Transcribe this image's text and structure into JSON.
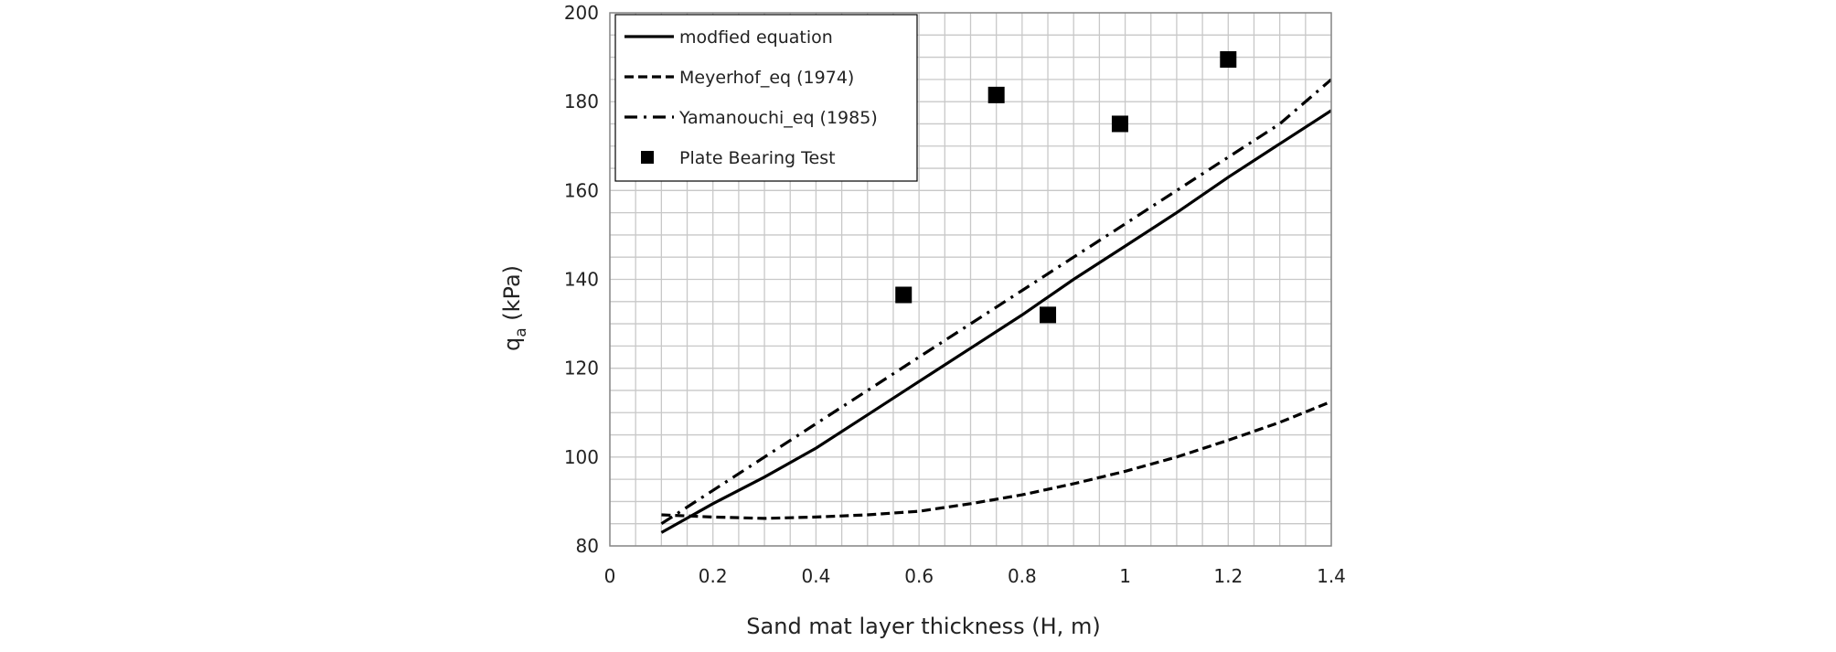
{
  "chart_data": {
    "type": "line",
    "title": "",
    "xlabel": "Sand mat layer thickness (H, m)",
    "ylabel": {
      "main": "q",
      "subscript": "a",
      "unit": " (kPa)"
    },
    "xlim": [
      0,
      1.4
    ],
    "ylim": [
      80,
      200
    ],
    "x_major_ticks": [
      0,
      0.2,
      0.4,
      0.6,
      0.8,
      1,
      1.2,
      1.4
    ],
    "y_major_ticks": [
      80,
      100,
      120,
      140,
      160,
      180,
      200
    ],
    "x_tick_labels": [
      "0",
      "0.2",
      "0.4",
      "0.6",
      "0.8",
      "1",
      "1.2",
      "1.4"
    ],
    "y_tick_labels": [
      "80",
      "100",
      "120",
      "140",
      "160",
      "180",
      "200"
    ],
    "x_minor_step": 0.05,
    "y_minor_step": 5,
    "grid": true,
    "legend_position": "top-left",
    "colors": {
      "ink": "#000000",
      "grid": "#c8c8c8",
      "frame": "#888888",
      "background": "#ffffff"
    },
    "series": [
      {
        "name": "modfied equation",
        "style": "solid",
        "points": [
          [
            0.1,
            83
          ],
          [
            0.2,
            89.5
          ],
          [
            0.3,
            95.5
          ],
          [
            0.4,
            102
          ],
          [
            0.5,
            109.5
          ],
          [
            0.6,
            117
          ],
          [
            0.7,
            124.5
          ],
          [
            0.8,
            132
          ],
          [
            0.9,
            140
          ],
          [
            1.0,
            147.5
          ],
          [
            1.1,
            155
          ],
          [
            1.2,
            163
          ],
          [
            1.3,
            170.5
          ],
          [
            1.4,
            178
          ]
        ]
      },
      {
        "name": "Meyerhof_eq (1974)",
        "style": "dashed",
        "points": [
          [
            0.1,
            87
          ],
          [
            0.2,
            86.5
          ],
          [
            0.3,
            86.2
          ],
          [
            0.4,
            86.5
          ],
          [
            0.5,
            87
          ],
          [
            0.6,
            87.8
          ],
          [
            0.7,
            89.5
          ],
          [
            0.8,
            91.5
          ],
          [
            0.9,
            94
          ],
          [
            1.0,
            96.8
          ],
          [
            1.1,
            100
          ],
          [
            1.2,
            103.8
          ],
          [
            1.3,
            107.8
          ],
          [
            1.4,
            112.5
          ]
        ]
      },
      {
        "name": "Yamanouchi_eq (1985)",
        "style": "dashdot",
        "points": [
          [
            0.1,
            85
          ],
          [
            0.2,
            92.5
          ],
          [
            0.3,
            100
          ],
          [
            0.4,
            107.5
          ],
          [
            0.5,
            115
          ],
          [
            0.6,
            122.5
          ],
          [
            0.7,
            130
          ],
          [
            0.8,
            137.5
          ],
          [
            0.9,
            145
          ],
          [
            1.0,
            152.5
          ],
          [
            1.1,
            160
          ],
          [
            1.2,
            167.5
          ],
          [
            1.3,
            175
          ],
          [
            1.4,
            185
          ]
        ]
      },
      {
        "name": "Plate Bearing Test",
        "style": "marker-square",
        "points": [
          [
            0.57,
            136.5
          ],
          [
            0.75,
            181.5
          ],
          [
            0.85,
            132
          ],
          [
            0.99,
            175
          ],
          [
            1.2,
            189.5
          ]
        ]
      }
    ]
  }
}
